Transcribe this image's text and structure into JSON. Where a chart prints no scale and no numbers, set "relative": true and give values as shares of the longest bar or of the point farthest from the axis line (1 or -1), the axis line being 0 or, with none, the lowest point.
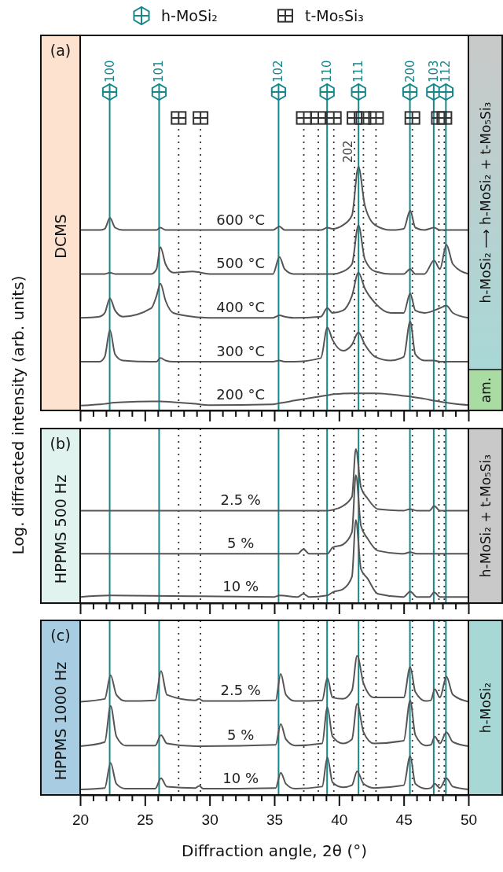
{
  "chart_data": [
    {
      "type": "line",
      "title": "(a)",
      "subtitle": "DCMS",
      "ylabel": "Log. diffracted intensity (arb. units)",
      "relative": true,
      "tick_labels": false,
      "xlim": [
        20,
        50
      ],
      "xticks": [
        20,
        {
          "value": 21,
          "label": null
        },
        {
          "value": 22,
          "label": null
        },
        {
          "value": 23,
          "label": null
        },
        {
          "value": 24,
          "label": null
        },
        25,
        {
          "value": 26,
          "label": null
        },
        {
          "value": 27,
          "label": null
        },
        {
          "value": 28,
          "label": null
        },
        {
          "value": 29,
          "label": null
        },
        30,
        {
          "value": 31,
          "label": null
        },
        {
          "value": 32,
          "label": null
        },
        {
          "value": 33,
          "label": null
        },
        {
          "value": 34,
          "label": null
        },
        35,
        {
          "value": 36,
          "label": null
        },
        {
          "value": 37,
          "label": null
        },
        {
          "value": 38,
          "label": null
        },
        {
          "value": 39,
          "label": null
        },
        40,
        {
          "value": 41,
          "label": null
        },
        {
          "value": 42,
          "label": null
        },
        {
          "value": 43,
          "label": null
        },
        {
          "value": 44,
          "label": null
        },
        45,
        {
          "value": 46,
          "label": null
        },
        {
          "value": 47,
          "label": null
        },
        {
          "value": 48,
          "label": null
        },
        {
          "value": 49,
          "label": null
        },
        50
      ],
      "x": [
        20,
        21.5,
        21.9,
        22.3,
        22.7,
        23.3,
        25.5,
        25.9,
        26.2,
        26.6,
        27.2,
        28.7,
        30,
        34.9,
        35.4,
        35.8,
        36.5,
        38.6,
        39.1,
        39.5,
        40.3,
        41.0,
        41.5,
        42.0,
        42.8,
        44,
        45.0,
        45.5,
        45.9,
        46.6,
        47.35,
        47.8,
        48.3,
        48.8,
        50
      ],
      "series": [
        {
          "name": "600 °C",
          "color": "#555555",
          "values": [
            0.74,
            0.74,
            0.745,
            0.79,
            0.75,
            0.74,
            0.74,
            0.74,
            0.75,
            0.74,
            0.74,
            0.74,
            0.74,
            0.74,
            0.755,
            0.74,
            0.74,
            0.74,
            0.75,
            0.745,
            0.76,
            0.8,
            1,
            0.84,
            0.76,
            0.74,
            0.745,
            0.82,
            0.75,
            0.74,
            0.75,
            0.74,
            0.74,
            0.74,
            0.74
          ]
        },
        {
          "name": "500 °C",
          "color": "#555555",
          "values": [
            0.56,
            0.56,
            0.56,
            0.565,
            0.56,
            0.56,
            0.56,
            0.58,
            0.67,
            0.6,
            0.565,
            0.57,
            0.56,
            0.56,
            0.63,
            0.58,
            0.56,
            0.56,
            0.56,
            0.56,
            0.57,
            0.6,
            0.76,
            0.62,
            0.57,
            0.56,
            0.56,
            0.58,
            0.56,
            0.56,
            0.615,
            0.58,
            0.68,
            0.6,
            0.56
          ]
        },
        {
          "name": "400 °C",
          "color": "#555555",
          "values": [
            0.38,
            0.385,
            0.4,
            0.46,
            0.41,
            0.385,
            0.42,
            0.47,
            0.52,
            0.45,
            0.4,
            0.385,
            0.38,
            0.38,
            0.39,
            0.385,
            0.38,
            0.385,
            0.42,
            0.4,
            0.41,
            0.47,
            0.565,
            0.5,
            0.44,
            0.4,
            0.4,
            0.48,
            0.41,
            0.4,
            0.41,
            0.42,
            0.43,
            0.4,
            0.38
          ]
        },
        {
          "name": "300 °C",
          "color": "#555555",
          "values": [
            0.2,
            0.2,
            0.22,
            0.33,
            0.23,
            0.205,
            0.2,
            0.2,
            0.215,
            0.205,
            0.2,
            0.2,
            0.2,
            0.2,
            0.205,
            0.2,
            0.2,
            0.215,
            0.34,
            0.29,
            0.245,
            0.27,
            0.32,
            0.27,
            0.22,
            0.205,
            0.22,
            0.365,
            0.23,
            0.205,
            0.205,
            0.2,
            0.2,
            0.2,
            0.2
          ]
        },
        {
          "name": "200 °C",
          "color": "#555555",
          "values": [
            0.02,
            0.025,
            0.027,
            0.03,
            0.032,
            0.034,
            0.037,
            0.037,
            0.037,
            0.036,
            0.034,
            0.028,
            0.022,
            0.025,
            0.03,
            0.033,
            0.04,
            0.058,
            0.062,
            0.066,
            0.069,
            0.07,
            0.07,
            0.07,
            0.07,
            0.066,
            0.06,
            0.057,
            0.053,
            0.048,
            0.04,
            0.036,
            0.032,
            0.028,
            0.022
          ]
        }
      ],
      "ref_lines": [
        {
          "axis": "x",
          "value": 22.28,
          "color": "#17878c",
          "line_style": "solid"
        },
        {
          "axis": "x",
          "value": 26.1,
          "color": "#17878c",
          "line_style": "solid"
        },
        {
          "axis": "x",
          "value": 35.33,
          "color": "#17878c",
          "line_style": "solid"
        },
        {
          "axis": "x",
          "value": 39.08,
          "color": "#17878c",
          "line_style": "solid"
        },
        {
          "axis": "x",
          "value": 41.51,
          "color": "#17878c",
          "line_style": "solid"
        },
        {
          "axis": "x",
          "value": 45.48,
          "color": "#17878c",
          "line_style": "solid"
        },
        {
          "axis": "x",
          "value": 47.32,
          "color": "#17878c",
          "line_style": "solid"
        },
        {
          "axis": "x",
          "value": 48.26,
          "color": "#17878c",
          "line_style": "solid"
        },
        {
          "axis": "x",
          "value": 27.61,
          "color": "#333333",
          "line_style": "dotted"
        },
        {
          "axis": "x",
          "value": 29.3,
          "color": "#333333",
          "line_style": "dotted"
        },
        {
          "axis": "x",
          "value": 37.28,
          "color": "#333333",
          "line_style": "dotted"
        },
        {
          "axis": "x",
          "value": 38.4,
          "color": "#333333",
          "line_style": "dotted"
        },
        {
          "axis": "x",
          "value": 39.6,
          "color": "#333333",
          "line_style": "dotted"
        },
        {
          "axis": "x",
          "value": 41.2,
          "color": "#333333",
          "line_style": "dotted"
        },
        {
          "axis": "x",
          "value": 41.89,
          "color": "#333333",
          "line_style": "dotted"
        },
        {
          "axis": "x",
          "value": 42.86,
          "color": "#333333",
          "line_style": "dotted"
        },
        {
          "axis": "x",
          "value": 45.67,
          "color": "#333333",
          "line_style": "dotted"
        },
        {
          "axis": "x",
          "value": 47.72,
          "color": "#333333",
          "line_style": "dotted"
        },
        {
          "axis": "x",
          "value": 48.14,
          "color": "#333333",
          "line_style": "dotted"
        }
      ],
      "annotations": [
        "h-MoSi₂",
        "t-Mo₅Si₃",
        "h-MoSi₂ ⟶ h-MoSi₂ + t-Mo₅Si₃",
        "am.",
        {
          "text": "100",
          "x": 22.28
        },
        {
          "text": "101",
          "x": 26.1
        },
        {
          "text": "102",
          "x": 35.33
        },
        {
          "text": "110",
          "x": 39.08
        },
        {
          "text": "111",
          "x": 41.51
        },
        {
          "text": "200",
          "x": 45.48
        },
        {
          "text": "103",
          "x": 47.32
        },
        {
          "text": "112",
          "x": 48.26
        },
        {
          "text": "202",
          "x": 41.2
        }
      ]
    },
    {
      "type": "line",
      "title": "(b)",
      "subtitle": "HPPMS 500 Hz",
      "relative": true,
      "tick_labels": false,
      "xlim": [
        20,
        50
      ],
      "xticks": [
        20,
        {
          "value": 21,
          "label": null
        },
        {
          "value": 22,
          "label": null
        },
        {
          "value": 23,
          "label": null
        },
        {
          "value": 24,
          "label": null
        },
        25,
        {
          "value": 26,
          "label": null
        },
        {
          "value": 27,
          "label": null
        },
        {
          "value": 28,
          "label": null
        },
        {
          "value": 29,
          "label": null
        },
        30,
        {
          "value": 31,
          "label": null
        },
        {
          "value": 32,
          "label": null
        },
        {
          "value": 33,
          "label": null
        },
        {
          "value": 34,
          "label": null
        },
        35,
        {
          "value": 36,
          "label": null
        },
        {
          "value": 37,
          "label": null
        },
        {
          "value": 38,
          "label": null
        },
        {
          "value": 39,
          "label": null
        },
        40,
        {
          "value": 41,
          "label": null
        },
        {
          "value": 42,
          "label": null
        },
        {
          "value": 43,
          "label": null
        },
        {
          "value": 44,
          "label": null
        },
        45,
        {
          "value": 46,
          "label": null
        },
        {
          "value": 47,
          "label": null
        },
        {
          "value": 48,
          "label": null
        },
        {
          "value": 49,
          "label": null
        },
        50
      ],
      "x": [
        20,
        22.3,
        35.0,
        35.4,
        36.8,
        37.25,
        37.7,
        39.1,
        39.5,
        40.3,
        41.0,
        41.3,
        41.7,
        42.2,
        43.0,
        45.0,
        45.5,
        46.0,
        47.0,
        47.35,
        47.8,
        50
      ],
      "series": [
        {
          "name": "2.5 %",
          "color": "#555555",
          "values": [
            0.6,
            0.6,
            0.6,
            0.6,
            0.6,
            0.6,
            0.6,
            0.6,
            0.605,
            0.63,
            0.69,
            1,
            0.75,
            0.68,
            0.61,
            0.6,
            0.61,
            0.6,
            0.6,
            0.63,
            0.6,
            0.6
          ]
        },
        {
          "name": "5 %",
          "color": "#555555",
          "values": [
            0.32,
            0.32,
            0.32,
            0.32,
            0.32,
            0.35,
            0.32,
            0.32,
            0.36,
            0.38,
            0.46,
            0.83,
            0.5,
            0.42,
            0.34,
            0.32,
            0.33,
            0.32,
            0.32,
            0.32,
            0.32,
            0.32
          ]
        },
        {
          "name": "10 %",
          "color": "#555555",
          "values": [
            0.04,
            0.05,
            0.04,
            0.05,
            0.04,
            0.06,
            0.04,
            0.05,
            0.07,
            0.09,
            0.17,
            0.54,
            0.22,
            0.16,
            0.06,
            0.04,
            0.075,
            0.04,
            0.04,
            0.07,
            0.04,
            0.04
          ]
        }
      ],
      "ref_lines": [
        {
          "axis": "x",
          "value": 22.28,
          "color": "#17878c",
          "line_style": "solid"
        },
        {
          "axis": "x",
          "value": 26.1,
          "color": "#17878c",
          "line_style": "solid"
        },
        {
          "axis": "x",
          "value": 35.33,
          "color": "#17878c",
          "line_style": "solid"
        },
        {
          "axis": "x",
          "value": 39.08,
          "color": "#17878c",
          "line_style": "solid"
        },
        {
          "axis": "x",
          "value": 41.51,
          "color": "#17878c",
          "line_style": "solid"
        },
        {
          "axis": "x",
          "value": 45.48,
          "color": "#17878c",
          "line_style": "solid"
        },
        {
          "axis": "x",
          "value": 47.32,
          "color": "#17878c",
          "line_style": "solid"
        },
        {
          "axis": "x",
          "value": 48.26,
          "color": "#17878c",
          "line_style": "solid"
        },
        {
          "axis": "x",
          "value": 27.61,
          "color": "#333333",
          "line_style": "dotted"
        },
        {
          "axis": "x",
          "value": 29.3,
          "color": "#333333",
          "line_style": "dotted"
        },
        {
          "axis": "x",
          "value": 37.28,
          "color": "#333333",
          "line_style": "dotted"
        },
        {
          "axis": "x",
          "value": 38.4,
          "color": "#333333",
          "line_style": "dotted"
        },
        {
          "axis": "x",
          "value": 39.6,
          "color": "#333333",
          "line_style": "dotted"
        },
        {
          "axis": "x",
          "value": 41.89,
          "color": "#333333",
          "line_style": "dotted"
        },
        {
          "axis": "x",
          "value": 42.86,
          "color": "#333333",
          "line_style": "dotted"
        },
        {
          "axis": "x",
          "value": 45.67,
          "color": "#333333",
          "line_style": "dotted"
        },
        {
          "axis": "x",
          "value": 47.72,
          "color": "#333333",
          "line_style": "dotted"
        },
        {
          "axis": "x",
          "value": 48.14,
          "color": "#333333",
          "line_style": "dotted"
        }
      ],
      "annotations": [
        "h-MoSi₂ + t-Mo₅Si₃"
      ]
    },
    {
      "type": "line",
      "title": "(c)",
      "subtitle": "HPPMS 1000 Hz",
      "xlabel": "Diffraction angle, 2θ (°)",
      "relative": true,
      "tick_labels": "x",
      "xlim": [
        20,
        50
      ],
      "xticks": [
        20,
        {
          "value": 21,
          "label": null
        },
        {
          "value": 22,
          "label": null
        },
        {
          "value": 23,
          "label": null
        },
        {
          "value": 24,
          "label": null
        },
        25,
        {
          "value": 26,
          "label": null
        },
        {
          "value": 27,
          "label": null
        },
        {
          "value": 28,
          "label": null
        },
        {
          "value": 29,
          "label": null
        },
        30,
        {
          "value": 31,
          "label": null
        },
        {
          "value": 32,
          "label": null
        },
        {
          "value": 33,
          "label": null
        },
        {
          "value": 34,
          "label": null
        },
        35,
        {
          "value": 36,
          "label": null
        },
        {
          "value": 37,
          "label": null
        },
        {
          "value": 38,
          "label": null
        },
        {
          "value": 39,
          "label": null
        },
        40,
        {
          "value": 41,
          "label": null
        },
        {
          "value": 42,
          "label": null
        },
        {
          "value": 43,
          "label": null
        },
        {
          "value": 44,
          "label": null
        },
        45,
        {
          "value": 46,
          "label": null
        },
        {
          "value": 47,
          "label": null
        },
        {
          "value": 48,
          "label": null
        },
        {
          "value": 49,
          "label": null
        },
        50
      ],
      "x": [
        20,
        21.9,
        22.35,
        22.8,
        23.5,
        25.8,
        26.25,
        26.7,
        28.9,
        29.2,
        29.5,
        35.1,
        35.5,
        35.9,
        36.6,
        38.7,
        39.1,
        39.5,
        40.3,
        41.0,
        41.4,
        41.9,
        42.7,
        45.0,
        45.5,
        45.9,
        46.7,
        47.1,
        47.4,
        47.8,
        48.3,
        48.8,
        50
      ],
      "series": [
        {
          "name": "2.5 %",
          "color": "#555555",
          "values": [
            0.67,
            0.69,
            0.86,
            0.72,
            0.675,
            0.68,
            0.89,
            0.72,
            0.68,
            0.69,
            0.675,
            0.68,
            0.87,
            0.72,
            0.675,
            0.68,
            0.84,
            0.7,
            0.69,
            0.75,
            1,
            0.8,
            0.7,
            0.7,
            0.92,
            0.74,
            0.675,
            0.68,
            0.76,
            0.7,
            0.85,
            0.72,
            0.67
          ]
        },
        {
          "name": "5 %",
          "color": "#555555",
          "values": [
            0.35,
            0.38,
            0.64,
            0.42,
            0.355,
            0.355,
            0.43,
            0.37,
            0.35,
            0.35,
            0.35,
            0.36,
            0.51,
            0.4,
            0.355,
            0.37,
            0.63,
            0.42,
            0.37,
            0.4,
            0.655,
            0.45,
            0.37,
            0.39,
            0.68,
            0.43,
            0.355,
            0.36,
            0.42,
            0.37,
            0.45,
            0.38,
            0.35
          ]
        },
        {
          "name": "10 %",
          "color": "#555555",
          "values": [
            0.04,
            0.05,
            0.23,
            0.08,
            0.045,
            0.045,
            0.12,
            0.06,
            0.05,
            0.065,
            0.045,
            0.05,
            0.16,
            0.08,
            0.045,
            0.06,
            0.27,
            0.09,
            0.055,
            0.07,
            0.17,
            0.08,
            0.05,
            0.07,
            0.28,
            0.08,
            0.045,
            0.05,
            0.08,
            0.05,
            0.12,
            0.06,
            0.04
          ]
        }
      ],
      "ref_lines": [
        {
          "axis": "x",
          "value": 22.28,
          "color": "#17878c",
          "line_style": "solid"
        },
        {
          "axis": "x",
          "value": 26.1,
          "color": "#17878c",
          "line_style": "solid"
        },
        {
          "axis": "x",
          "value": 35.33,
          "color": "#17878c",
          "line_style": "solid"
        },
        {
          "axis": "x",
          "value": 39.08,
          "color": "#17878c",
          "line_style": "solid"
        },
        {
          "axis": "x",
          "value": 41.51,
          "color": "#17878c",
          "line_style": "solid"
        },
        {
          "axis": "x",
          "value": 45.48,
          "color": "#17878c",
          "line_style": "solid"
        },
        {
          "axis": "x",
          "value": 47.32,
          "color": "#17878c",
          "line_style": "solid"
        },
        {
          "axis": "x",
          "value": 48.26,
          "color": "#17878c",
          "line_style": "solid"
        },
        {
          "axis": "x",
          "value": 27.61,
          "color": "#333333",
          "line_style": "dotted"
        },
        {
          "axis": "x",
          "value": 29.3,
          "color": "#333333",
          "line_style": "dotted"
        },
        {
          "axis": "x",
          "value": 37.28,
          "color": "#333333",
          "line_style": "dotted"
        },
        {
          "axis": "x",
          "value": 38.4,
          "color": "#333333",
          "line_style": "dotted"
        },
        {
          "axis": "x",
          "value": 39.6,
          "color": "#333333",
          "line_style": "dotted"
        },
        {
          "axis": "x",
          "value": 41.89,
          "color": "#333333",
          "line_style": "dotted"
        },
        {
          "axis": "x",
          "value": 42.86,
          "color": "#333333",
          "line_style": "dotted"
        },
        {
          "axis": "x",
          "value": 45.67,
          "color": "#333333",
          "line_style": "dotted"
        },
        {
          "axis": "x",
          "value": 47.72,
          "color": "#333333",
          "line_style": "dotted"
        },
        {
          "axis": "x",
          "value": 48.14,
          "color": "#333333",
          "line_style": "dotted"
        }
      ],
      "annotations": [
        "h-MoSi₂"
      ]
    }
  ]
}
